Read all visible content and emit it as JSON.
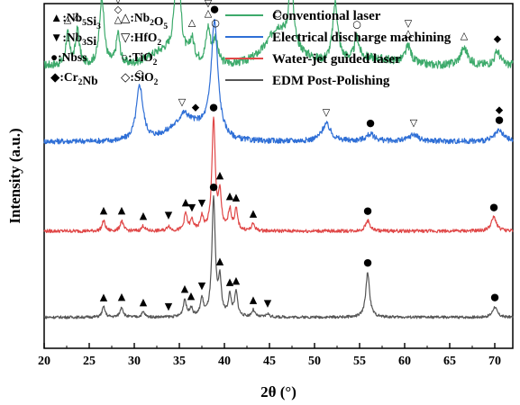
{
  "chart_data": {
    "type": "line",
    "title": "",
    "xlabel": "2θ (°)",
    "ylabel": "Intensity (a.u.)",
    "xlim": [
      20,
      72
    ],
    "xticks": [
      20,
      25,
      30,
      35,
      40,
      45,
      50,
      55,
      60,
      65,
      70
    ],
    "yticks_shown": false,
    "grid": false,
    "legend_position": "top-right",
    "series": [
      {
        "name": "Conventional laser",
        "color": "#3daa6b",
        "baseline": 0.82,
        "noise": 0.012,
        "peaks": [
          [
            22.6,
            0.09,
            0.25
          ],
          [
            23.7,
            0.1,
            0.25
          ],
          [
            26.4,
            0.2,
            0.3
          ],
          [
            28.2,
            0.09,
            0.25
          ],
          [
            34.8,
            0.36,
            0.3
          ],
          [
            36.4,
            0.06,
            0.3
          ],
          [
            38.2,
            0.1,
            0.3
          ],
          [
            39.0,
            0.07,
            0.3
          ],
          [
            45.9,
            0.06,
            1.2
          ],
          [
            47.4,
            0.22,
            0.25
          ],
          [
            52.3,
            0.17,
            0.35
          ],
          [
            54.7,
            0.06,
            0.3
          ],
          [
            60.4,
            0.05,
            0.4
          ],
          [
            66.6,
            0.05,
            0.5
          ],
          [
            70.3,
            0.04,
            0.4
          ]
        ],
        "bumps": [
          [
            33.5,
            0.04,
            2.5
          ],
          [
            46.5,
            0.05,
            3.0
          ],
          [
            56.0,
            0.02,
            4.0
          ]
        ]
      },
      {
        "name": "Electrical discharge machining",
        "color": "#2f6fd6",
        "baseline": 0.6,
        "noise": 0.008,
        "peaks": [
          [
            30.6,
            0.16,
            0.45
          ],
          [
            35.5,
            0.03,
            0.6
          ],
          [
            38.9,
            0.33,
            0.45
          ],
          [
            51.3,
            0.05,
            0.6
          ],
          [
            56.2,
            0.02,
            0.6
          ],
          [
            61.0,
            0.02,
            0.6
          ],
          [
            70.5,
            0.03,
            0.6
          ]
        ],
        "bumps": [
          [
            36.0,
            0.05,
            3.0
          ]
        ]
      },
      {
        "name": "Water-jet guided laser",
        "color": "#e04848",
        "baseline": 0.34,
        "noise": 0.005,
        "peaks": [
          [
            26.6,
            0.03,
            0.2
          ],
          [
            28.6,
            0.03,
            0.2
          ],
          [
            31.0,
            0.015,
            0.2
          ],
          [
            33.8,
            0.015,
            0.2
          ],
          [
            35.7,
            0.05,
            0.2
          ],
          [
            36.4,
            0.03,
            0.2
          ],
          [
            37.5,
            0.04,
            0.2
          ],
          [
            38.8,
            0.32,
            0.22
          ],
          [
            39.5,
            0.1,
            0.2
          ],
          [
            40.6,
            0.06,
            0.2
          ],
          [
            41.3,
            0.06,
            0.2
          ],
          [
            43.2,
            0.02,
            0.2
          ],
          [
            55.9,
            0.03,
            0.3
          ],
          [
            69.9,
            0.04,
            0.35
          ]
        ],
        "bumps": []
      },
      {
        "name": "EDM Post-Polishing",
        "color": "#555555",
        "baseline": 0.09,
        "noise": 0.004,
        "peaks": [
          [
            26.6,
            0.03,
            0.2
          ],
          [
            28.6,
            0.03,
            0.2
          ],
          [
            31.0,
            0.015,
            0.2
          ],
          [
            35.6,
            0.05,
            0.2
          ],
          [
            36.3,
            0.025,
            0.2
          ],
          [
            37.5,
            0.05,
            0.2
          ],
          [
            38.8,
            0.34,
            0.22
          ],
          [
            39.5,
            0.1,
            0.2
          ],
          [
            40.6,
            0.06,
            0.2
          ],
          [
            41.3,
            0.07,
            0.2
          ],
          [
            43.2,
            0.02,
            0.2
          ],
          [
            44.8,
            0.01,
            0.2
          ],
          [
            55.9,
            0.13,
            0.25
          ],
          [
            70.0,
            0.03,
            0.3
          ]
        ],
        "bumps": []
      }
    ],
    "phase_key": [
      {
        "symbol": "▲",
        "name": "Nb",
        "sub1": "5",
        "mid": "Si",
        "sub2": "3"
      },
      {
        "symbol": "△",
        "name": "Nb",
        "sub1": "2",
        "mid": "O",
        "sub2": "5"
      },
      {
        "symbol": "▼",
        "name": "Nb",
        "sub1": "3",
        "mid": "Si",
        "sub2": ""
      },
      {
        "symbol": "▽",
        "name": "HfO",
        "sub1": "2",
        "mid": "",
        "sub2": ""
      },
      {
        "symbol": "●",
        "name": "Nbss",
        "sub1": "",
        "mid": "",
        "sub2": ""
      },
      {
        "symbol": "○",
        "name": "TiO",
        "sub1": "2",
        "mid": "",
        "sub2": ""
      },
      {
        "symbol": "◆",
        "name": "Cr",
        "sub1": "2",
        "mid": "Nb",
        "sub2": ""
      },
      {
        "symbol": "◇",
        "name": "SiO",
        "sub1": "2",
        "mid": "",
        "sub2": ""
      }
    ],
    "annotations": [
      {
        "series": 0,
        "x": 22.6,
        "symbols": [
          "△"
        ]
      },
      {
        "series": 0,
        "x": 23.7,
        "symbols": [
          "△"
        ]
      },
      {
        "series": 0,
        "x": 26.4,
        "symbols": [
          "◇"
        ]
      },
      {
        "series": 0,
        "x": 28.2,
        "symbols": [
          "△",
          "◇",
          "▽"
        ]
      },
      {
        "series": 0,
        "x": 34.8,
        "symbols": [
          "○"
        ]
      },
      {
        "series": 0,
        "x": 36.4,
        "symbols": [
          "△"
        ]
      },
      {
        "series": 0,
        "x": 38.2,
        "symbols": [
          "△",
          "▽"
        ]
      },
      {
        "series": 0,
        "x": 39.0,
        "symbols": [
          "○"
        ]
      },
      {
        "series": 0,
        "x": 45.9,
        "symbols": [
          "○"
        ]
      },
      {
        "series": 0,
        "x": 47.4,
        "symbols": [
          "△",
          "◇"
        ]
      },
      {
        "series": 0,
        "x": 52.3,
        "symbols": [
          "△"
        ]
      },
      {
        "series": 0,
        "x": 54.7,
        "symbols": [
          "○"
        ]
      },
      {
        "series": 0,
        "x": 60.4,
        "symbols": [
          "△",
          "▽"
        ]
      },
      {
        "series": 0,
        "x": 66.6,
        "symbols": [
          "△"
        ]
      },
      {
        "series": 0,
        "x": 70.3,
        "symbols": [
          "◆"
        ]
      },
      {
        "series": 1,
        "x": 30.6,
        "symbols": [
          "○"
        ]
      },
      {
        "series": 1,
        "x": 35.3,
        "symbols": [
          "▽"
        ]
      },
      {
        "series": 1,
        "x": 36.8,
        "symbols": [
          "◆"
        ]
      },
      {
        "series": 1,
        "x": 38.9,
        "symbols": [
          "●"
        ]
      },
      {
        "series": 1,
        "x": 51.3,
        "symbols": [
          "▽"
        ]
      },
      {
        "series": 1,
        "x": 56.2,
        "symbols": [
          "●"
        ]
      },
      {
        "series": 1,
        "x": 61.0,
        "symbols": [
          "▽"
        ]
      },
      {
        "series": 1,
        "x": 70.5,
        "symbols": [
          "●",
          "◆"
        ]
      },
      {
        "series": 2,
        "x": 26.6,
        "symbols": [
          "▲"
        ]
      },
      {
        "series": 2,
        "x": 28.6,
        "symbols": [
          "▲"
        ]
      },
      {
        "series": 2,
        "x": 31.0,
        "symbols": [
          "▲"
        ]
      },
      {
        "series": 2,
        "x": 33.8,
        "symbols": [
          "▼"
        ]
      },
      {
        "series": 2,
        "x": 35.7,
        "symbols": [
          "▲"
        ]
      },
      {
        "series": 2,
        "x": 36.4,
        "symbols": [
          "▼"
        ]
      },
      {
        "series": 2,
        "x": 37.5,
        "symbols": [
          "▼"
        ]
      },
      {
        "series": 2,
        "x": 38.8,
        "symbols": [
          "●"
        ]
      },
      {
        "series": 2,
        "x": 39.5,
        "symbols": [
          "▲"
        ]
      },
      {
        "series": 2,
        "x": 40.6,
        "symbols": [
          "▲"
        ]
      },
      {
        "series": 2,
        "x": 41.3,
        "symbols": [
          "▲"
        ]
      },
      {
        "series": 2,
        "x": 43.2,
        "symbols": [
          "▲"
        ]
      },
      {
        "series": 2,
        "x": 55.9,
        "symbols": [
          "●"
        ]
      },
      {
        "series": 2,
        "x": 69.9,
        "symbols": [
          "●"
        ]
      },
      {
        "series": 3,
        "x": 26.6,
        "symbols": [
          "▲"
        ]
      },
      {
        "series": 3,
        "x": 28.6,
        "symbols": [
          "▲"
        ]
      },
      {
        "series": 3,
        "x": 31.0,
        "symbols": [
          "▲"
        ]
      },
      {
        "series": 3,
        "x": 33.8,
        "symbols": [
          "▼"
        ]
      },
      {
        "series": 3,
        "x": 35.6,
        "symbols": [
          "▲"
        ]
      },
      {
        "series": 3,
        "x": 36.3,
        "symbols": [
          "▲"
        ]
      },
      {
        "series": 3,
        "x": 37.5,
        "symbols": [
          "▼"
        ]
      },
      {
        "series": 3,
        "x": 38.8,
        "symbols": [
          "●"
        ]
      },
      {
        "series": 3,
        "x": 39.5,
        "symbols": [
          "▲"
        ]
      },
      {
        "series": 3,
        "x": 40.6,
        "symbols": [
          "▲"
        ]
      },
      {
        "series": 3,
        "x": 41.3,
        "symbols": [
          "▲"
        ]
      },
      {
        "series": 3,
        "x": 43.2,
        "symbols": [
          "▲"
        ]
      },
      {
        "series": 3,
        "x": 44.8,
        "symbols": [
          "▼"
        ]
      },
      {
        "series": 3,
        "x": 55.9,
        "symbols": [
          "●"
        ]
      },
      {
        "series": 3,
        "x": 70.0,
        "symbols": [
          "●"
        ]
      }
    ]
  }
}
